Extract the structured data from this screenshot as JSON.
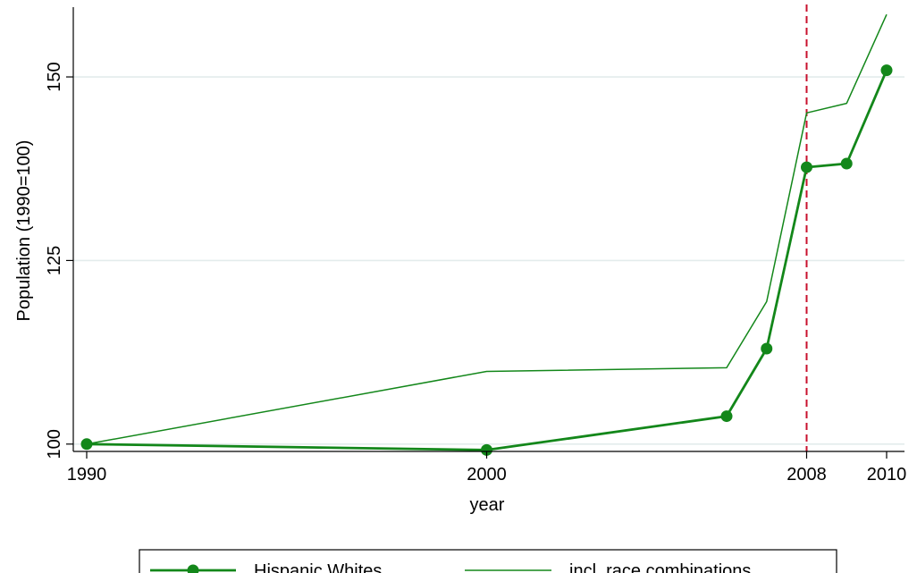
{
  "chart_data": {
    "type": "line",
    "xlabel": "year",
    "ylabel": "Population (1990=100)",
    "xlim": [
      1990,
      2010
    ],
    "ylim": [
      99,
      159.5
    ],
    "x_ticks": [
      1990,
      2000,
      2008,
      2010
    ],
    "y_ticks": [
      100,
      125,
      150
    ],
    "grid": "horizontal",
    "reference_line": {
      "x": 2008,
      "color": "#c8102e",
      "style": "dashed"
    },
    "series": [
      {
        "name": "Hispanic Whites",
        "color": "#13871a",
        "marker": "circle",
        "x": [
          1990,
          2000,
          2006,
          2007,
          2008,
          2009,
          2010
        ],
        "values": [
          100,
          99.2,
          103.8,
          113.0,
          137.7,
          138.2,
          150.9
        ]
      },
      {
        "name": "incl. race combinations",
        "color": "#13871a",
        "marker": "none",
        "x": [
          1990,
          2000,
          2006,
          2007,
          2008,
          2009,
          2010
        ],
        "values": [
          100,
          109.9,
          110.4,
          119.4,
          145.1,
          146.4,
          158.5
        ]
      }
    ],
    "legend": {
      "position": "bottom",
      "entries": [
        "Hispanic Whites",
        "incl. race combinations"
      ]
    }
  }
}
